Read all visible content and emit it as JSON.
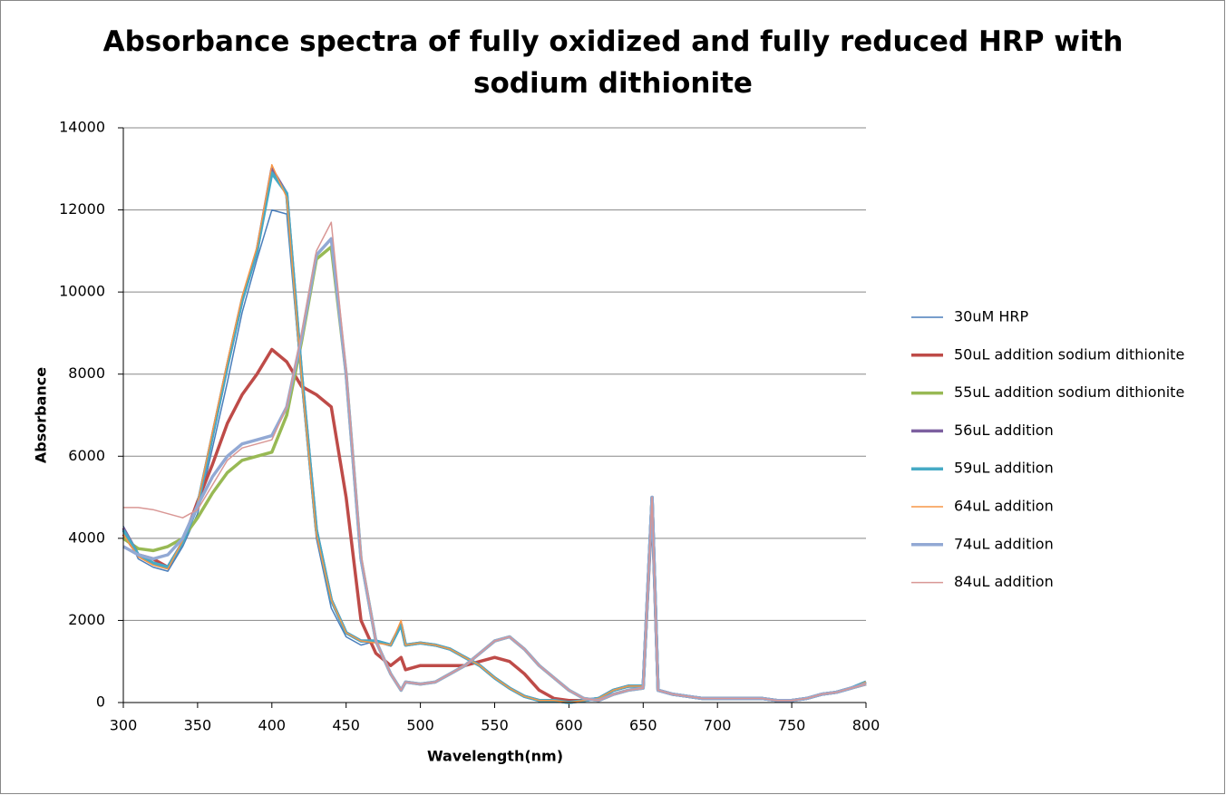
{
  "chart_data": {
    "type": "line",
    "title": "Absorbance spectra of fully oxidized and fully reduced HRP with sodium dithionite",
    "x_label": "Wavelength(nm)",
    "y_label": "Absorbance",
    "xlim": [
      300,
      800
    ],
    "xticks": [
      300,
      350,
      400,
      450,
      500,
      550,
      600,
      650,
      700,
      750,
      800
    ],
    "ylim": [
      0,
      14000
    ],
    "yticks": [
      0,
      2000,
      4000,
      6000,
      8000,
      10000,
      12000,
      14000
    ],
    "grid": true,
    "legend": "right",
    "x": [
      300,
      310,
      320,
      330,
      340,
      350,
      360,
      370,
      380,
      390,
      400,
      410,
      420,
      430,
      440,
      450,
      460,
      470,
      480,
      487,
      490,
      500,
      510,
      520,
      530,
      540,
      550,
      560,
      570,
      580,
      590,
      600,
      610,
      620,
      630,
      640,
      650,
      656,
      660,
      670,
      680,
      690,
      700,
      710,
      720,
      730,
      740,
      750,
      760,
      770,
      780,
      790,
      800
    ],
    "series": [
      {
        "name": "30uM HRP",
        "color": "#4a7ebb",
        "line_width": 1.5,
        "values": [
          4300,
          3500,
          3300,
          3200,
          3800,
          4600,
          6200,
          7800,
          9500,
          10800,
          12000,
          11900,
          7800,
          4000,
          2300,
          1600,
          1400,
          1500,
          1400,
          1900,
          1400,
          1450,
          1400,
          1300,
          1100,
          900,
          600,
          350,
          150,
          50,
          50,
          0,
          50,
          100,
          300,
          400,
          400,
          5000,
          300,
          200,
          150,
          100,
          100,
          100,
          100,
          100,
          50,
          50,
          100,
          200,
          250,
          350,
          500
        ]
      },
      {
        "name": "50uL addition sodium dithionite",
        "color": "#be4b48",
        "line_width": 3.5,
        "values": [
          4100,
          3600,
          3500,
          3300,
          3900,
          4900,
          5800,
          6800,
          7500,
          8000,
          8600,
          8300,
          7700,
          7500,
          7200,
          5000,
          2000,
          1200,
          900,
          1100,
          800,
          900,
          900,
          900,
          900,
          1000,
          1100,
          1000,
          700,
          300,
          100,
          50,
          50,
          100,
          300,
          400,
          400,
          4800,
          300,
          200,
          150,
          100,
          100,
          100,
          100,
          100,
          50,
          50,
          100,
          200,
          250,
          350,
          450
        ]
      },
      {
        "name": "55uL addition sodium dithionite",
        "color": "#98b954",
        "line_width": 3.5,
        "values": [
          4000,
          3750,
          3700,
          3800,
          4000,
          4500,
          5100,
          5600,
          5900,
          6000,
          6100,
          7000,
          8800,
          10800,
          11100,
          8000,
          3500,
          1500,
          700,
          300,
          500,
          450,
          500,
          700,
          900,
          1200,
          1500,
          1600,
          1300,
          900,
          600,
          300,
          100,
          50,
          200,
          300,
          350,
          5000,
          300,
          200,
          150,
          100,
          100,
          100,
          100,
          100,
          50,
          50,
          100,
          200,
          250,
          350,
          450
        ]
      },
      {
        "name": "56uL addition",
        "color": "#7d60a0",
        "line_width": 3.5,
        "values": [
          4250,
          3600,
          3400,
          3300,
          3900,
          4800,
          6500,
          8200,
          9800,
          11000,
          13000,
          12400,
          8000,
          4200,
          2500,
          1700,
          1500,
          1500,
          1400,
          1900,
          1400,
          1450,
          1400,
          1300,
          1100,
          900,
          600,
          350,
          150,
          50,
          50,
          0,
          50,
          100,
          300,
          400,
          400,
          5000,
          300,
          200,
          150,
          100,
          100,
          100,
          100,
          100,
          50,
          50,
          100,
          200,
          250,
          350,
          500
        ]
      },
      {
        "name": "59uL addition",
        "color": "#46aac5",
        "line_width": 3.5,
        "values": [
          4200,
          3600,
          3400,
          3300,
          3900,
          4800,
          6500,
          8200,
          9800,
          11000,
          12900,
          12400,
          8000,
          4200,
          2500,
          1700,
          1500,
          1500,
          1400,
          1900,
          1400,
          1450,
          1400,
          1300,
          1100,
          900,
          600,
          350,
          150,
          50,
          50,
          0,
          50,
          100,
          300,
          400,
          400,
          5000,
          300,
          200,
          150,
          100,
          100,
          100,
          100,
          100,
          50,
          50,
          100,
          200,
          250,
          350,
          500
        ]
      },
      {
        "name": "64uL addition",
        "color": "#f79646",
        "line_width": 1.5,
        "values": [
          4100,
          3550,
          3350,
          3250,
          3950,
          4850,
          6600,
          8300,
          9900,
          11100,
          13100,
          12300,
          7900,
          4100,
          2500,
          1700,
          1500,
          1450,
          1400,
          2000,
          1400,
          1450,
          1400,
          1300,
          1100,
          900,
          600,
          350,
          150,
          50,
          50,
          0,
          50,
          100,
          300,
          400,
          400,
          5000,
          300,
          200,
          150,
          100,
          100,
          100,
          100,
          100,
          50,
          50,
          100,
          200,
          250,
          350,
          500
        ]
      },
      {
        "name": "74uL addition",
        "color": "#92a9d4",
        "line_width": 3.5,
        "values": [
          3800,
          3600,
          3500,
          3600,
          4000,
          4800,
          5500,
          6000,
          6300,
          6400,
          6500,
          7200,
          8900,
          10900,
          11300,
          8000,
          3500,
          1500,
          700,
          300,
          500,
          450,
          500,
          700,
          900,
          1200,
          1500,
          1600,
          1300,
          900,
          600,
          300,
          100,
          50,
          200,
          300,
          350,
          5000,
          300,
          200,
          150,
          100,
          100,
          100,
          100,
          100,
          50,
          50,
          100,
          200,
          250,
          350,
          450
        ]
      },
      {
        "name": "84uL addition",
        "color": "#d99795",
        "line_width": 1.5,
        "values": [
          4750,
          4750,
          4700,
          4600,
          4500,
          4700,
          5300,
          5900,
          6200,
          6300,
          6400,
          7200,
          9000,
          11000,
          11700,
          8100,
          3600,
          1500,
          700,
          300,
          500,
          450,
          500,
          700,
          900,
          1200,
          1500,
          1600,
          1300,
          900,
          600,
          300,
          100,
          50,
          200,
          300,
          350,
          5000,
          300,
          200,
          150,
          100,
          100,
          100,
          100,
          100,
          50,
          50,
          100,
          200,
          250,
          350,
          450
        ]
      }
    ]
  }
}
